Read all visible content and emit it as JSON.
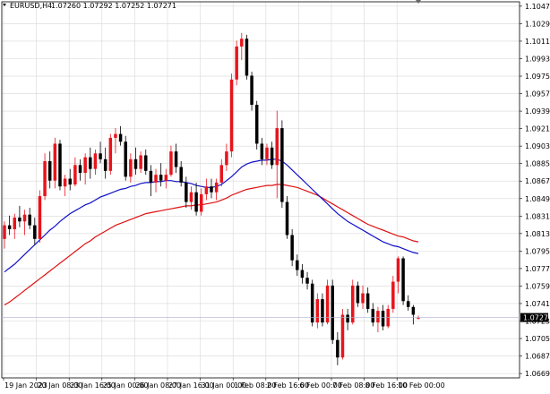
{
  "header": {
    "symbol": "EURUSD,H4",
    "ohlc": "1.07260 1.07292 1.07252 1.07271"
  },
  "colors": {
    "background": "#ffffff",
    "grid": "#d8d8d8",
    "bull": "#e8141c",
    "bear": "#000000",
    "ma_fast": "#1010c8",
    "ma_slow": "#e01010",
    "price_line": "#b0b0d0",
    "price_label_bg": "#000000",
    "price_label_text": "#ffffff"
  },
  "chart_data": {
    "type": "candlestick",
    "symbol": "EURUSD",
    "timeframe": "H4",
    "current_price": "1.07271",
    "y_ticks": [
      "1.10475",
      "1.10295",
      "1.10115",
      "1.09935",
      "1.09755",
      "1.09575",
      "1.09395",
      "1.09215",
      "1.09035",
      "1.08855",
      "1.08675",
      "1.08495",
      "1.08315",
      "1.08135",
      "1.07955",
      "1.07775",
      "1.07595",
      "1.07415",
      "1.07235",
      "1.07055",
      "1.06875",
      "1.06695"
    ],
    "x_ticks": [
      "19 Jan 2023",
      "20 Jan 08:00",
      "23 Jan 16:00",
      "25 Jan 00:00",
      "26 Jan 08:00",
      "27 Jan 16:00",
      "31 Jan 00:00",
      "1 Feb 08:00",
      "2 Feb 16:00",
      "6 Feb 00:00",
      "7 Feb 08:00",
      "8 Feb 16:00",
      "10 Feb 00:00"
    ],
    "ylim": [
      1.0665,
      1.1052
    ],
    "candles": [
      [
        1.0808,
        1.0826,
        1.0798,
        1.0822
      ],
      [
        1.0822,
        1.0832,
        1.0812,
        1.0818
      ],
      [
        1.0818,
        1.0834,
        1.0808,
        1.083
      ],
      [
        1.083,
        1.0842,
        1.082,
        1.0826
      ],
      [
        1.0826,
        1.0838,
        1.0812,
        1.0833
      ],
      [
        1.0833,
        1.084,
        1.0818,
        1.0822
      ],
      [
        1.0822,
        1.083,
        1.0802,
        1.0808
      ],
      [
        1.0808,
        1.0858,
        1.0804,
        1.0852
      ],
      [
        1.0852,
        1.0896,
        1.0848,
        1.0888
      ],
      [
        1.0888,
        1.0898,
        1.086,
        1.0868
      ],
      [
        1.0868,
        1.0912,
        1.086,
        1.0906
      ],
      [
        1.0906,
        1.091,
        1.0858,
        1.0862
      ],
      [
        1.0862,
        1.0874,
        1.0852,
        1.087
      ],
      [
        1.087,
        1.088,
        1.0858,
        1.0864
      ],
      [
        1.0864,
        1.0892,
        1.0862,
        1.0884
      ],
      [
        1.0884,
        1.089,
        1.0868,
        1.0876
      ],
      [
        1.0876,
        1.0896,
        1.0864,
        1.0892
      ],
      [
        1.0892,
        1.0902,
        1.087,
        1.088
      ],
      [
        1.088,
        1.09,
        1.0874,
        1.0896
      ],
      [
        1.0896,
        1.0908,
        1.0886,
        1.089
      ],
      [
        1.089,
        1.0902,
        1.087,
        1.0878
      ],
      [
        1.0878,
        1.0916,
        1.0874,
        1.0912
      ],
      [
        1.0912,
        1.0922,
        1.0896,
        1.0916
      ],
      [
        1.0916,
        1.0924,
        1.0904,
        1.0908
      ],
      [
        1.0908,
        1.0914,
        1.0868,
        1.0872
      ],
      [
        1.0872,
        1.0896,
        1.0866,
        1.089
      ],
      [
        1.089,
        1.0902,
        1.0874,
        1.088
      ],
      [
        1.088,
        1.0898,
        1.0876,
        1.0894
      ],
      [
        1.0894,
        1.09,
        1.0874,
        1.0878
      ],
      [
        1.0878,
        1.0884,
        1.0852,
        1.0866
      ],
      [
        1.0866,
        1.088,
        1.0856,
        1.0874
      ],
      [
        1.0874,
        1.0886,
        1.0862,
        1.0868
      ],
      [
        1.0868,
        1.088,
        1.086,
        1.0874
      ],
      [
        1.0874,
        1.0904,
        1.0872,
        1.0898
      ],
      [
        1.0898,
        1.0906,
        1.0876,
        1.0882
      ],
      [
        1.0882,
        1.0888,
        1.0862,
        1.0866
      ],
      [
        1.0866,
        1.0872,
        1.084,
        1.0846
      ],
      [
        1.0846,
        1.0862,
        1.0838,
        1.0856
      ],
      [
        1.0856,
        1.0866,
        1.0832,
        1.0836
      ],
      [
        1.0836,
        1.086,
        1.0832,
        1.0854
      ],
      [
        1.0854,
        1.087,
        1.0848,
        1.0862
      ],
      [
        1.0862,
        1.087,
        1.085,
        1.0856
      ],
      [
        1.0856,
        1.087,
        1.0848,
        1.0866
      ],
      [
        1.0866,
        1.089,
        1.0862,
        1.0884
      ],
      [
        1.0884,
        1.0906,
        1.0878,
        1.0898
      ],
      [
        1.0898,
        1.0978,
        1.0892,
        1.0972
      ],
      [
        1.0972,
        1.1012,
        1.0966,
        1.1006
      ],
      [
        1.1006,
        1.102,
        1.0992,
        1.1014
      ],
      [
        1.1014,
        1.1018,
        1.0972,
        1.0976
      ],
      [
        1.0976,
        1.098,
        1.094,
        1.0946
      ],
      [
        1.0946,
        1.095,
        1.09,
        1.0906
      ],
      [
        1.0906,
        1.0912,
        1.0884,
        1.089
      ],
      [
        1.089,
        1.0906,
        1.0884,
        1.0902
      ],
      [
        1.0902,
        1.0908,
        1.088,
        1.0884
      ],
      [
        1.0884,
        1.094,
        1.085,
        1.0922
      ],
      [
        1.0922,
        1.093,
        1.084,
        1.0846
      ],
      [
        1.0846,
        1.0852,
        1.0808,
        1.0812
      ],
      [
        1.0812,
        1.0818,
        1.078,
        1.0786
      ],
      [
        1.0786,
        1.0792,
        1.077,
        1.0776
      ],
      [
        1.0776,
        1.0782,
        1.0762,
        1.0768
      ],
      [
        1.0768,
        1.0774,
        1.0756,
        1.0762
      ],
      [
        1.0762,
        1.0766,
        1.0718,
        1.0722
      ],
      [
        1.0722,
        1.0752,
        1.0716,
        1.0746
      ],
      [
        1.0746,
        1.0752,
        1.0718,
        1.0722
      ],
      [
        1.0722,
        1.0766,
        1.072,
        1.076
      ],
      [
        1.076,
        1.0766,
        1.07,
        1.0704
      ],
      [
        1.0704,
        1.0712,
        1.0678,
        1.0686
      ],
      [
        1.0686,
        1.0736,
        1.0684,
        1.073
      ],
      [
        1.073,
        1.0736,
        1.0714,
        1.0722
      ],
      [
        1.0722,
        1.0766,
        1.072,
        1.076
      ],
      [
        1.076,
        1.0764,
        1.0738,
        1.0742
      ],
      [
        1.0742,
        1.076,
        1.0736,
        1.0752
      ],
      [
        1.0752,
        1.0758,
        1.0732,
        1.0736
      ],
      [
        1.0736,
        1.0742,
        1.0718,
        1.0722
      ],
      [
        1.0722,
        1.0738,
        1.0712,
        1.0734
      ],
      [
        1.0734,
        1.074,
        1.0714,
        1.0718
      ],
      [
        1.0718,
        1.074,
        1.0716,
        1.0736
      ],
      [
        1.0736,
        1.077,
        1.0732,
        1.0764
      ],
      [
        1.0764,
        1.079,
        1.0752,
        1.0788
      ],
      [
        1.0788,
        1.079,
        1.074,
        1.0744
      ],
      [
        1.0744,
        1.075,
        1.0734,
        1.0738
      ],
      [
        1.0738,
        1.074,
        1.072,
        1.073
      ],
      [
        1.0726,
        1.0729,
        1.0725,
        1.0727
      ]
    ],
    "ma_fast": [
      1.0774,
      1.0778,
      1.0782,
      1.0787,
      1.0792,
      1.0797,
      1.0802,
      1.0807,
      1.0812,
      1.0817,
      1.0821,
      1.0826,
      1.083,
      1.0834,
      1.0837,
      1.084,
      1.0843,
      1.0845,
      1.0848,
      1.0851,
      1.0853,
      1.0855,
      1.0857,
      1.0859,
      1.086,
      1.0862,
      1.0863,
      1.0865,
      1.0866,
      1.0866,
      1.0867,
      1.0867,
      1.0868,
      1.0868,
      1.0867,
      1.0867,
      1.0866,
      1.0865,
      1.0863,
      1.0862,
      1.0861,
      1.0861,
      1.0862,
      1.0864,
      1.0868,
      1.0872,
      1.0877,
      1.0882,
      1.0885,
      1.0887,
      1.0888,
      1.0889,
      1.0889,
      1.089,
      1.089,
      1.0888,
      1.0884,
      1.0879,
      1.0874,
      1.0869,
      1.0864,
      1.0859,
      1.0854,
      1.0849,
      1.0844,
      1.0839,
      1.0834,
      1.083,
      1.0826,
      1.0823,
      1.082,
      1.0817,
      1.0814,
      1.0811,
      1.0808,
      1.0805,
      1.0803,
      1.0801,
      1.08,
      1.0798,
      1.0796,
      1.0794,
      1.0793
    ],
    "ma_slow": [
      1.074,
      1.0743,
      1.0747,
      1.0751,
      1.0755,
      1.0759,
      1.0763,
      1.0767,
      1.0771,
      1.0775,
      1.0779,
      1.0783,
      1.0787,
      1.0791,
      1.0795,
      1.0799,
      1.0803,
      1.0806,
      1.081,
      1.0813,
      1.0816,
      1.0819,
      1.0822,
      1.0824,
      1.0826,
      1.0828,
      1.083,
      1.0832,
      1.0834,
      1.0835,
      1.0836,
      1.0837,
      1.0838,
      1.0839,
      1.084,
      1.0841,
      1.0842,
      1.0842,
      1.0843,
      1.0843,
      1.0844,
      1.0845,
      1.0846,
      1.0848,
      1.085,
      1.0853,
      1.0855,
      1.0857,
      1.0859,
      1.086,
      1.0861,
      1.0862,
      1.0863,
      1.0863,
      1.0864,
      1.0864,
      1.0863,
      1.0862,
      1.0861,
      1.0859,
      1.0857,
      1.0855,
      1.0853,
      1.085,
      1.0847,
      1.0844,
      1.0841,
      1.0838,
      1.0835,
      1.0832,
      1.0829,
      1.0826,
      1.0823,
      1.0821,
      1.0819,
      1.0817,
      1.0815,
      1.0813,
      1.0811,
      1.081,
      1.0808,
      1.0806,
      1.0805
    ]
  }
}
